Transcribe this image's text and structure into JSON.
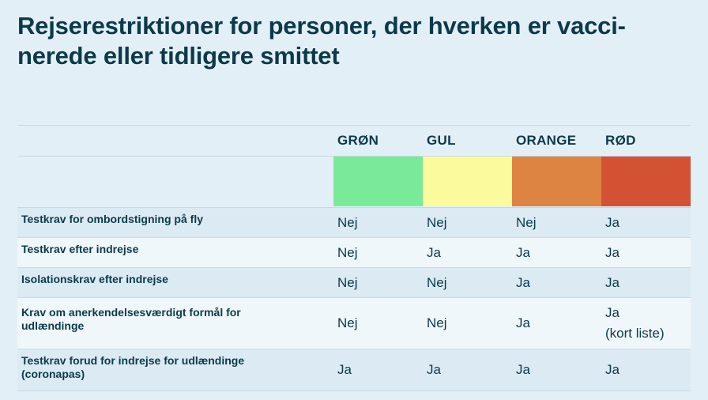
{
  "title": "Rejserestriktioner for personer, der hverken er vacci-nerede eller tidligere smittet",
  "title_lines": [
    "Rejserestriktioner for personer, der hverken er vacci-",
    "nerede eller tidligere smittet"
  ],
  "columns": [
    {
      "label": "GRØN",
      "color": "#79ea9a"
    },
    {
      "label": "GUL",
      "color": "#fbfb9e"
    },
    {
      "label": "ORANGE",
      "color": "#dd8443"
    },
    {
      "label": "RØD",
      "color": "#d35233"
    }
  ],
  "rows": [
    {
      "label": "Testkrav for ombordstigning på fly",
      "values": [
        "Nej",
        "Nej",
        "Nej",
        "Ja"
      ]
    },
    {
      "label": "Testkrav efter indrejse",
      "values": [
        "Nej",
        "Ja",
        "Ja",
        "Ja"
      ]
    },
    {
      "label": "Isolationskrav efter indrejse",
      "values": [
        "Nej",
        "Nej",
        "Ja",
        "Ja"
      ]
    },
    {
      "label_lines": [
        "Krav om anerkendelsesværdigt formål for",
        "udlændinge"
      ],
      "values": [
        "Nej",
        "Nej",
        "Ja"
      ],
      "last_value_lines": [
        "Ja",
        "(kort liste)"
      ]
    },
    {
      "label_lines": [
        "Testkrav forud for indrejse for udlændinge",
        "(coronapas)"
      ],
      "values": [
        "Ja",
        "Ja",
        "Ja",
        "Ja"
      ]
    }
  ]
}
